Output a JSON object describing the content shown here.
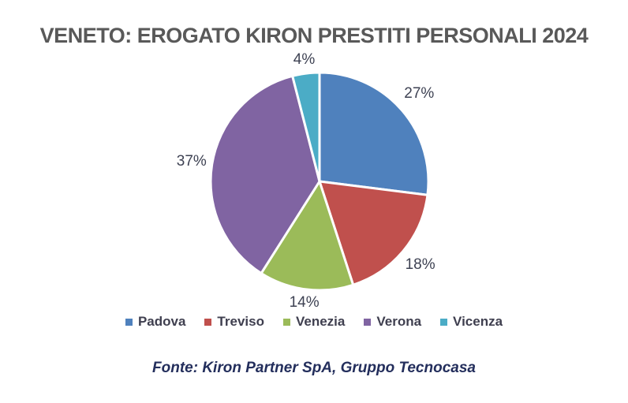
{
  "title": "VENETO: EROGATO KIRON PRESTITI PERSONALI 2024",
  "chart_data": {
    "type": "pie",
    "title": "VENETO: EROGATO KIRON PRESTITI PERSONALI 2024",
    "categories": [
      "Padova",
      "Treviso",
      "Venezia",
      "Verona",
      "Vicenza"
    ],
    "values": [
      27,
      18,
      14,
      37,
      4
    ],
    "labels": [
      "27%",
      "18%",
      "14%",
      "37%",
      "4%"
    ],
    "unit": "%",
    "colors": [
      "#4F81BD",
      "#C0504D",
      "#9BBB59",
      "#8064A2",
      "#4BACC6"
    ],
    "legend_position": "bottom",
    "start_angle_deg": 0,
    "direction": "clockwise",
    "slice_border_color": "#FFFFFF"
  },
  "footer": "Fonte: Kiron Partner SpA, Gruppo Tecnocasa"
}
